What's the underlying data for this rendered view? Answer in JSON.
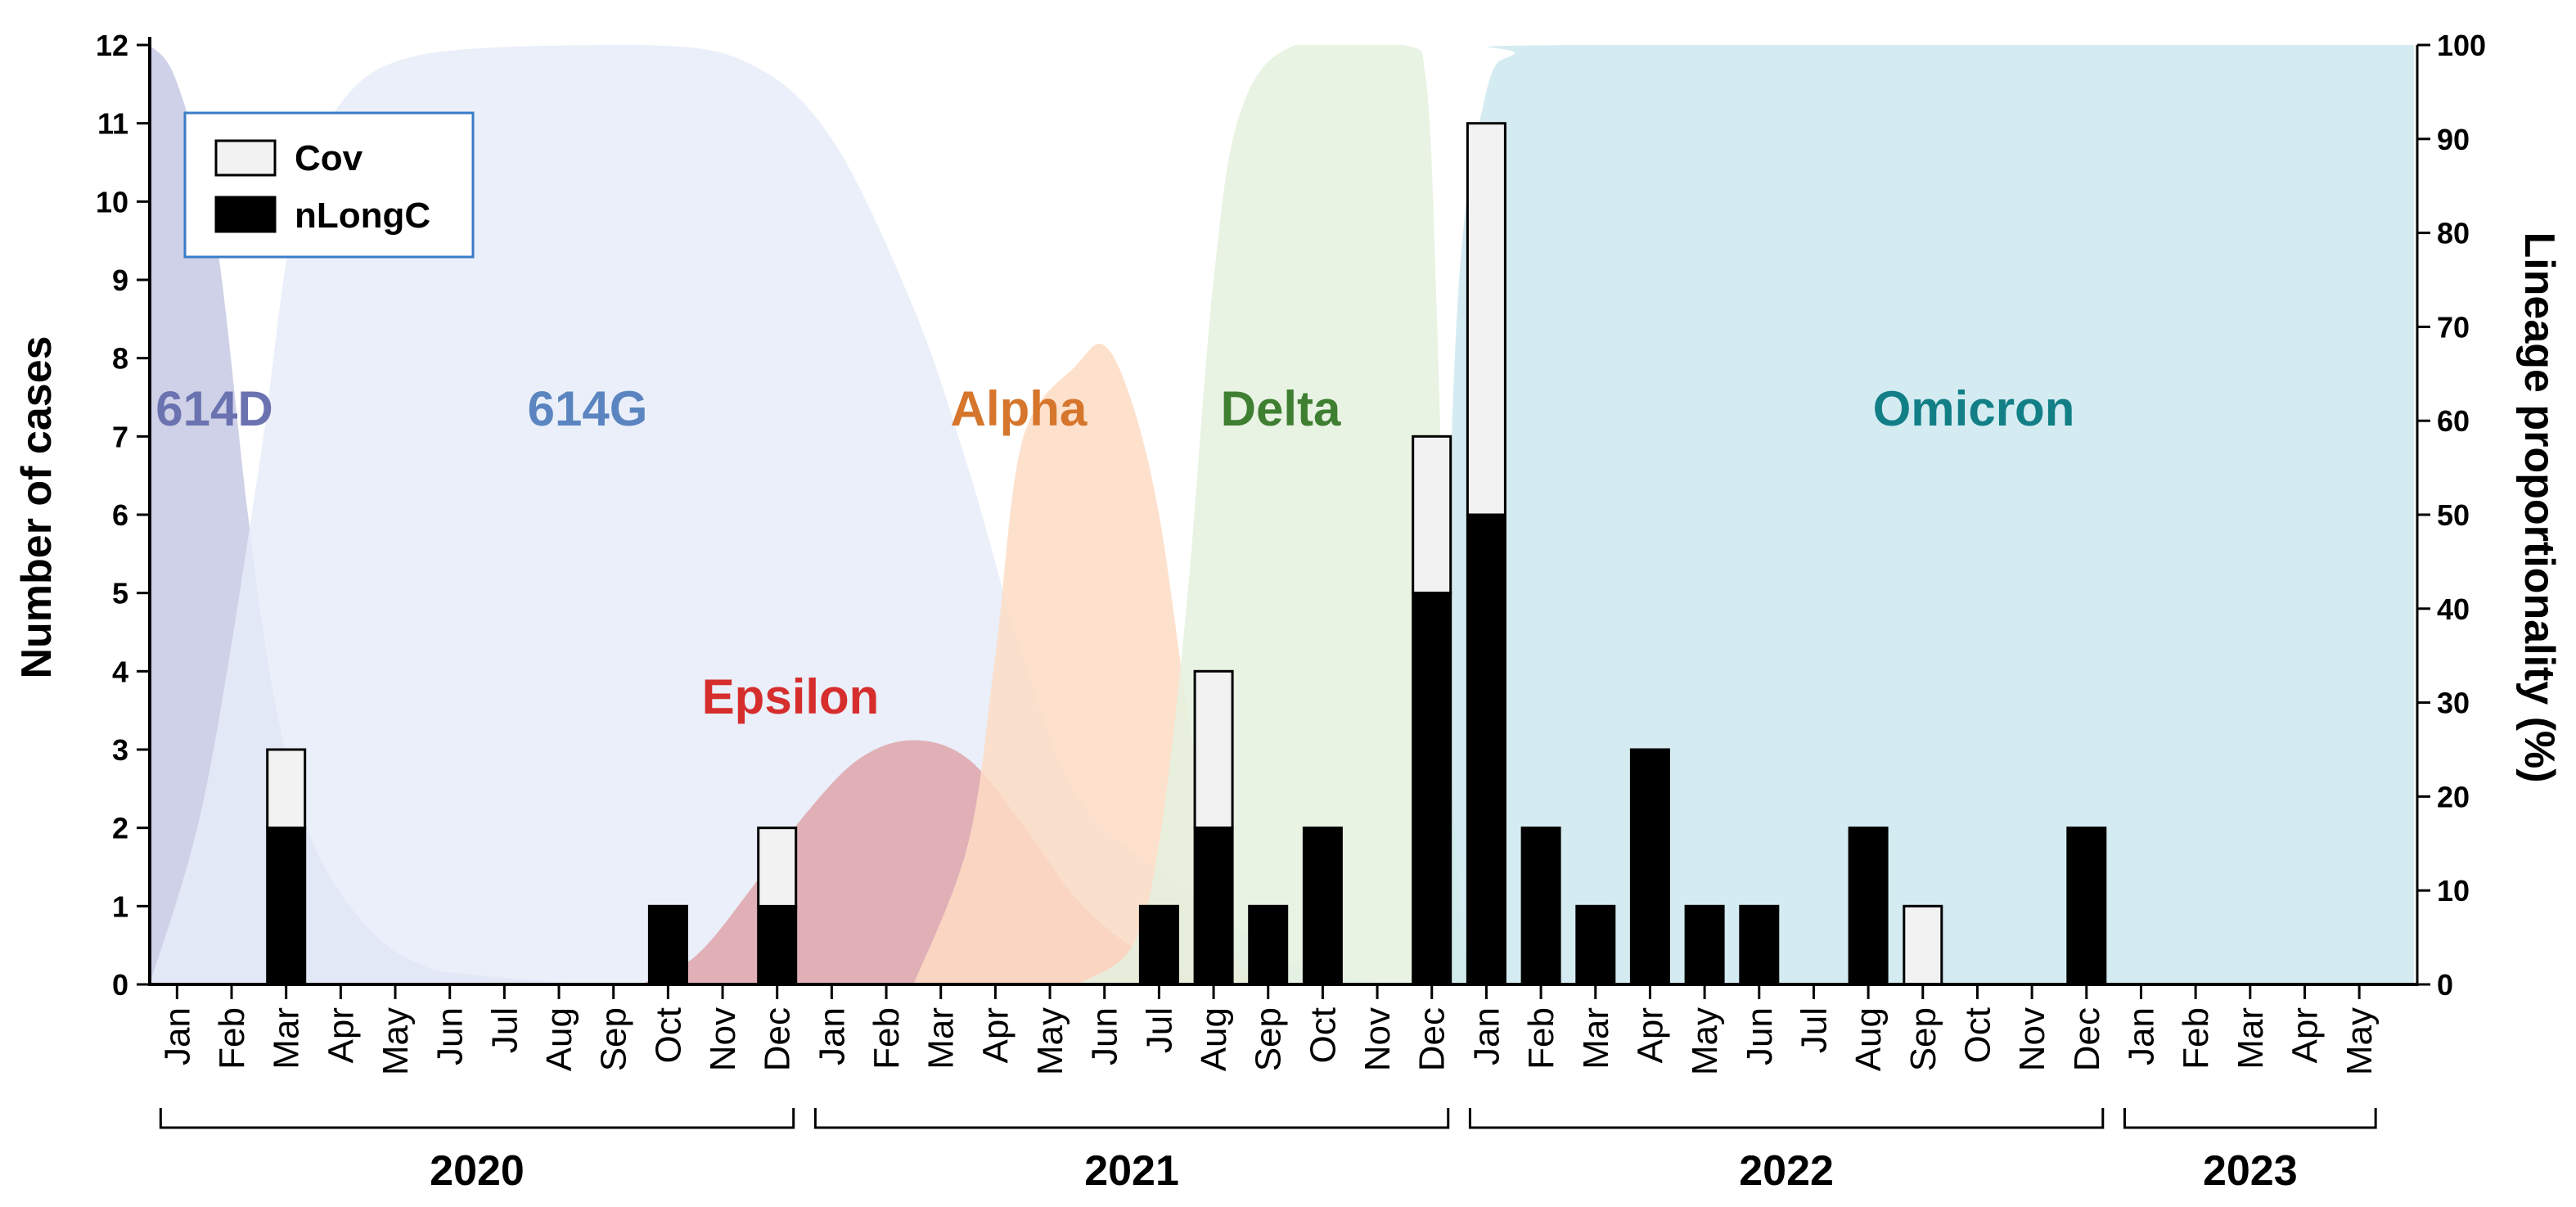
{
  "chart_data": {
    "type": "bar",
    "stacked": true,
    "ylabel": "Number of cases",
    "y2label": "Lineage proportionality (%)",
    "ylim": [
      0,
      12
    ],
    "y2lim": [
      0,
      100
    ],
    "yticks": [
      "0",
      "1",
      "2",
      "3",
      "4",
      "5",
      "6",
      "7",
      "8",
      "9",
      "10",
      "11",
      "12"
    ],
    "y2ticks": [
      "0",
      "10",
      "20",
      "30",
      "40",
      "50",
      "60",
      "70",
      "80",
      "90",
      "100"
    ],
    "years": [
      {
        "label": "2020",
        "months": [
          "Jan",
          "Feb",
          "Mar",
          "Apr",
          "May",
          "Jun",
          "Jul",
          "Aug",
          "Sep",
          "Oct",
          "Nov",
          "Dec"
        ]
      },
      {
        "label": "2021",
        "months": [
          "Jan",
          "Feb",
          "Mar",
          "Apr",
          "May",
          "Jun",
          "Jul",
          "Aug",
          "Sep",
          "Oct",
          "Nov",
          "Dec"
        ]
      },
      {
        "label": "2022",
        "months": [
          "Jan",
          "Feb",
          "Mar",
          "Apr",
          "May",
          "Jun",
          "Jul",
          "Aug",
          "Sep",
          "Oct",
          "Nov",
          "Dec"
        ]
      },
      {
        "label": "2023",
        "months": [
          "Jan",
          "Feb",
          "Mar",
          "Apr",
          "May"
        ]
      }
    ],
    "series": [
      {
        "name": "nLongC",
        "color": "#000000",
        "values": [
          0,
          0,
          2,
          0,
          0,
          0,
          0,
          0,
          0,
          1,
          0,
          1,
          0,
          0,
          0,
          0,
          0,
          0,
          1,
          2,
          1,
          2,
          0,
          5,
          6,
          2,
          1,
          3,
          1,
          1,
          0,
          2,
          0,
          0,
          0,
          2,
          0,
          0,
          0,
          0,
          0
        ]
      },
      {
        "name": "Cov",
        "color": "#f2f2f2",
        "values": [
          0,
          0,
          1,
          0,
          0,
          0,
          0,
          0,
          0,
          0,
          0,
          1,
          0,
          0,
          0,
          0,
          0,
          0,
          0,
          2,
          0,
          0,
          0,
          2,
          5,
          0,
          0,
          0,
          0,
          0,
          0,
          0,
          1,
          0,
          0,
          0,
          0,
          0,
          0,
          0,
          0
        ]
      }
    ],
    "lineages": [
      {
        "name": "614D",
        "color": "#6b72b0",
        "fill": "#c5c9e3",
        "points": [
          [
            0,
            100
          ],
          [
            0.5,
            96
          ],
          [
            1.2,
            80
          ],
          [
            1.8,
            50
          ],
          [
            2.3,
            30
          ],
          [
            3,
            15
          ],
          [
            4,
            6
          ],
          [
            5,
            2
          ],
          [
            6,
            1
          ],
          [
            8,
            0
          ]
        ]
      },
      {
        "name": "614G",
        "color": "#5b85c0",
        "fill": "#e6ecf8",
        "points": [
          [
            0,
            0
          ],
          [
            1,
            20
          ],
          [
            2,
            55
          ],
          [
            2.6,
            80
          ],
          [
            3.4,
            93
          ],
          [
            5,
            99
          ],
          [
            9,
            100
          ],
          [
            11,
            98
          ],
          [
            12.5,
            90
          ],
          [
            14,
            72
          ],
          [
            15,
            55
          ],
          [
            16,
            35
          ],
          [
            17,
            20
          ],
          [
            18.5,
            12
          ],
          [
            19.5,
            8
          ],
          [
            21,
            2
          ],
          [
            23,
            0
          ]
        ]
      },
      {
        "name": "Epsilon",
        "color": "#d62d2d",
        "fill": "#dea5aa",
        "points": [
          [
            9,
            0
          ],
          [
            10,
            3
          ],
          [
            11,
            10
          ],
          [
            12,
            18
          ],
          [
            13,
            24
          ],
          [
            14,
            26
          ],
          [
            15,
            24
          ],
          [
            16,
            17
          ],
          [
            17,
            9
          ],
          [
            18,
            4
          ],
          [
            19,
            1
          ],
          [
            20,
            0
          ]
        ]
      },
      {
        "name": "Alpha",
        "color": "#d6762c",
        "fill": "#fddcc4",
        "points": [
          [
            14,
            0
          ],
          [
            15,
            15
          ],
          [
            15.5,
            35
          ],
          [
            16,
            58
          ],
          [
            17,
            66
          ],
          [
            17.5,
            68
          ],
          [
            18,
            62
          ],
          [
            18.5,
            50
          ],
          [
            19,
            30
          ],
          [
            19.5,
            12
          ],
          [
            20,
            2
          ],
          [
            21,
            0
          ]
        ]
      },
      {
        "name": "Delta",
        "color": "#3f7f32",
        "fill": "#e4f1de",
        "points": [
          [
            17,
            0
          ],
          [
            18,
            4
          ],
          [
            18.5,
            15
          ],
          [
            19,
            40
          ],
          [
            19.5,
            75
          ],
          [
            20,
            93
          ],
          [
            21,
            100
          ],
          [
            23,
            100
          ],
          [
            23.4,
            96
          ],
          [
            23.6,
            70
          ],
          [
            23.8,
            30
          ],
          [
            24.1,
            5
          ],
          [
            24.5,
            0
          ]
        ]
      },
      {
        "name": "Omicron",
        "color": "#127f87",
        "fill": "#cce9ee",
        "points": [
          [
            23.5,
            0
          ],
          [
            23.7,
            30
          ],
          [
            24,
            75
          ],
          [
            24.5,
            95
          ],
          [
            25,
            99
          ],
          [
            26,
            100
          ],
          [
            41.5,
            100
          ]
        ]
      }
    ],
    "legend": {
      "position": "top-left",
      "entries": [
        "Cov",
        "nLongC"
      ]
    }
  }
}
